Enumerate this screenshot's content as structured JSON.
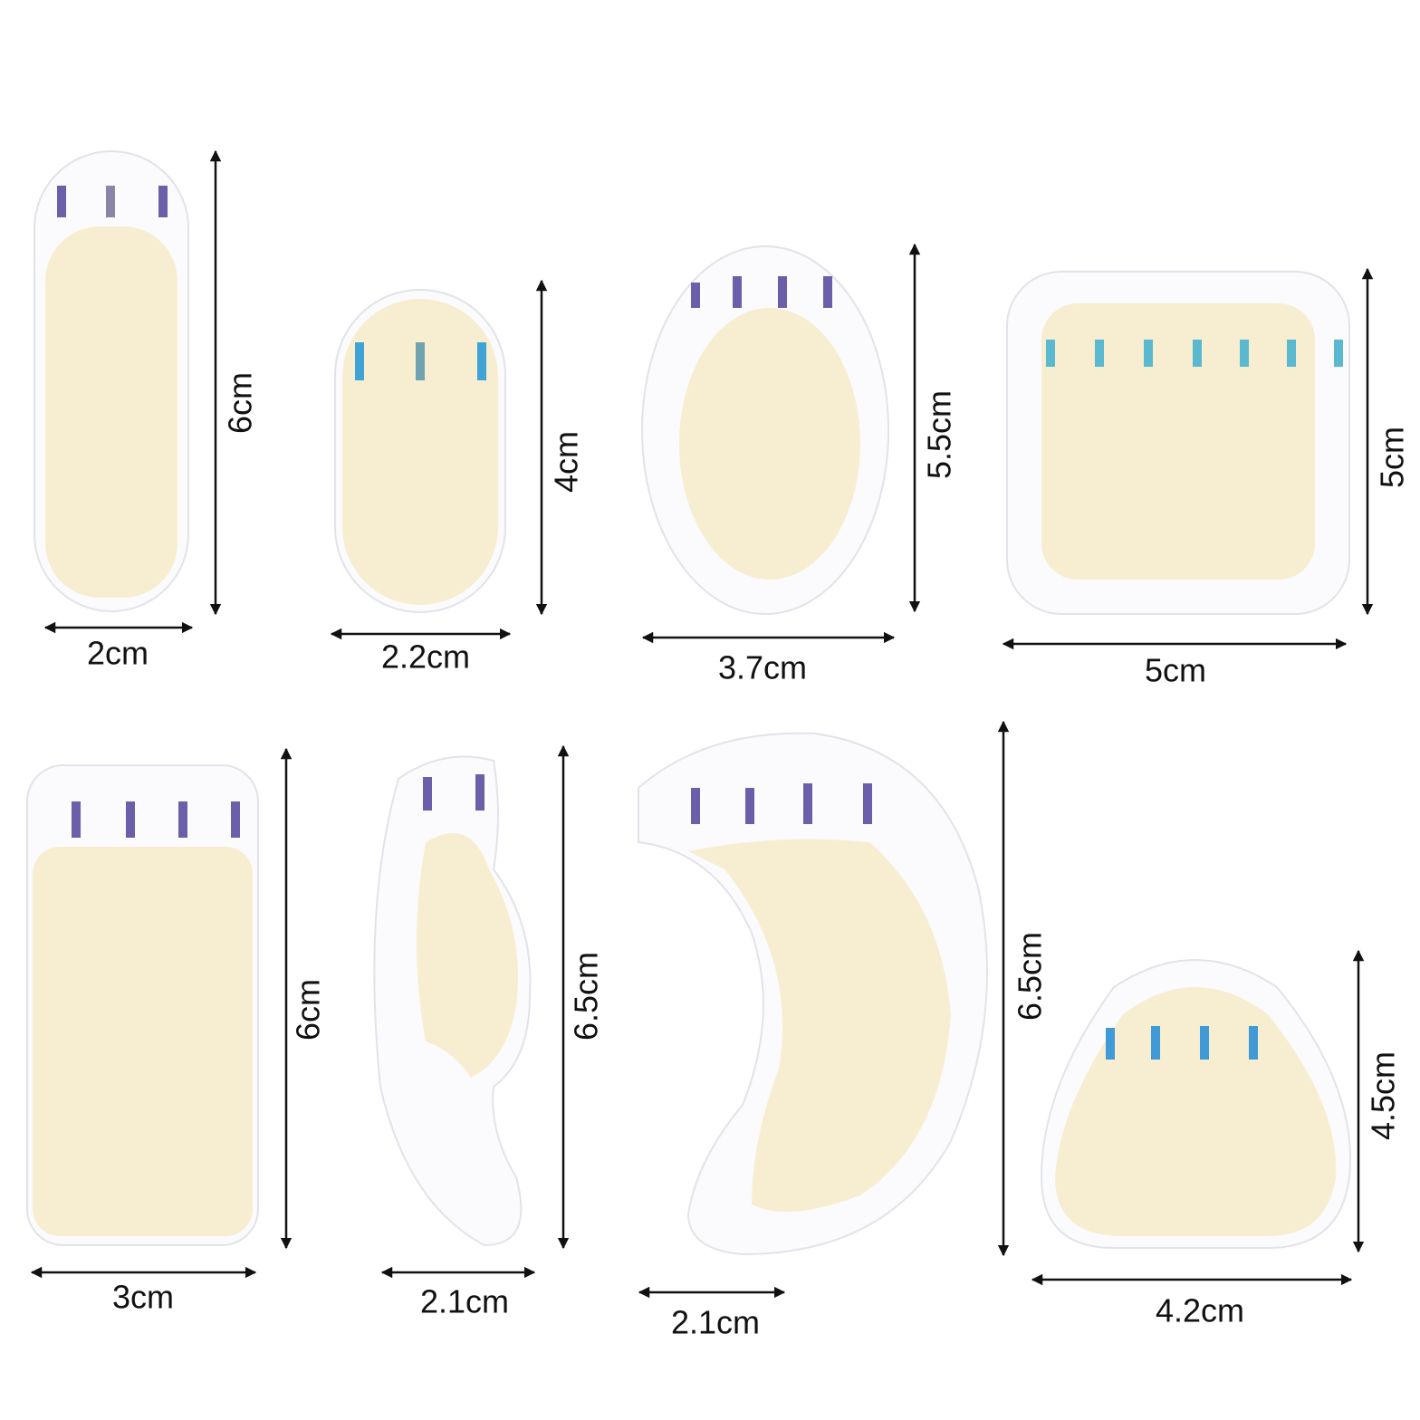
{
  "items": [
    {
      "width": "2cm",
      "height": "6cm"
    },
    {
      "width": "2.2cm",
      "height": "4cm"
    },
    {
      "width": "3.7cm",
      "height": "5.5cm"
    },
    {
      "width": "5cm",
      "height": "5cm"
    },
    {
      "width": "3cm",
      "height": "6cm"
    },
    {
      "width": "2.1cm",
      "height": "6.5cm"
    },
    {
      "width": "2.1cm",
      "height": "6.5cm"
    },
    {
      "width": "4.2cm",
      "height": "4.5cm"
    }
  ]
}
